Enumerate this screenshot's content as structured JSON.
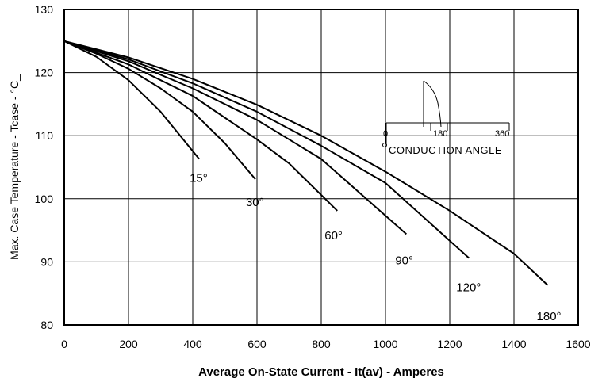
{
  "chart_data": {
    "type": "line",
    "title": "",
    "xlabel": "Average On-State Current - It(av) - Amperes",
    "ylabel": "Max. Case Temperature - Tcase - °C_",
    "xlim": [
      0,
      1600
    ],
    "ylim": [
      80,
      130
    ],
    "xticks": [
      0,
      200,
      400,
      600,
      800,
      1000,
      1200,
      1400,
      1600
    ],
    "yticks": [
      80,
      90,
      100,
      110,
      120,
      130
    ],
    "grid": true,
    "series": [
      {
        "name": "15°",
        "x": [
          0,
          100,
          200,
          300,
          420
        ],
        "y": [
          125,
          122.5,
          118.8,
          113.8,
          106.3
        ]
      },
      {
        "name": "30°",
        "x": [
          0,
          100,
          200,
          300,
          400,
          500,
          595
        ],
        "y": [
          125,
          123,
          120.6,
          117.5,
          113.8,
          108.8,
          103.1
        ]
      },
      {
        "name": "60°",
        "x": [
          0,
          200,
          400,
          600,
          700,
          850
        ],
        "y": [
          125,
          121.3,
          116.3,
          109.4,
          105.6,
          98.1
        ]
      },
      {
        "name": "90°",
        "x": [
          0,
          200,
          400,
          600,
          800,
          1065
        ],
        "y": [
          125,
          121.8,
          117.5,
          112.5,
          106.3,
          94.4
        ]
      },
      {
        "name": "120°",
        "x": [
          0,
          200,
          400,
          600,
          800,
          1000,
          1260
        ],
        "y": [
          125,
          122.1,
          118.3,
          113.8,
          108.4,
          102.5,
          90.6
        ]
      },
      {
        "name": "180°",
        "x": [
          0,
          200,
          400,
          600,
          800,
          1000,
          1200,
          1400,
          1505
        ],
        "y": [
          125,
          122.4,
          119,
          114.9,
          110,
          104.3,
          98.1,
          91.3,
          86.3
        ]
      }
    ],
    "annotations": {
      "inset_title": "CONDUCTION ANGLE",
      "inset_ticks": [
        "0",
        "180",
        "360"
      ]
    }
  }
}
